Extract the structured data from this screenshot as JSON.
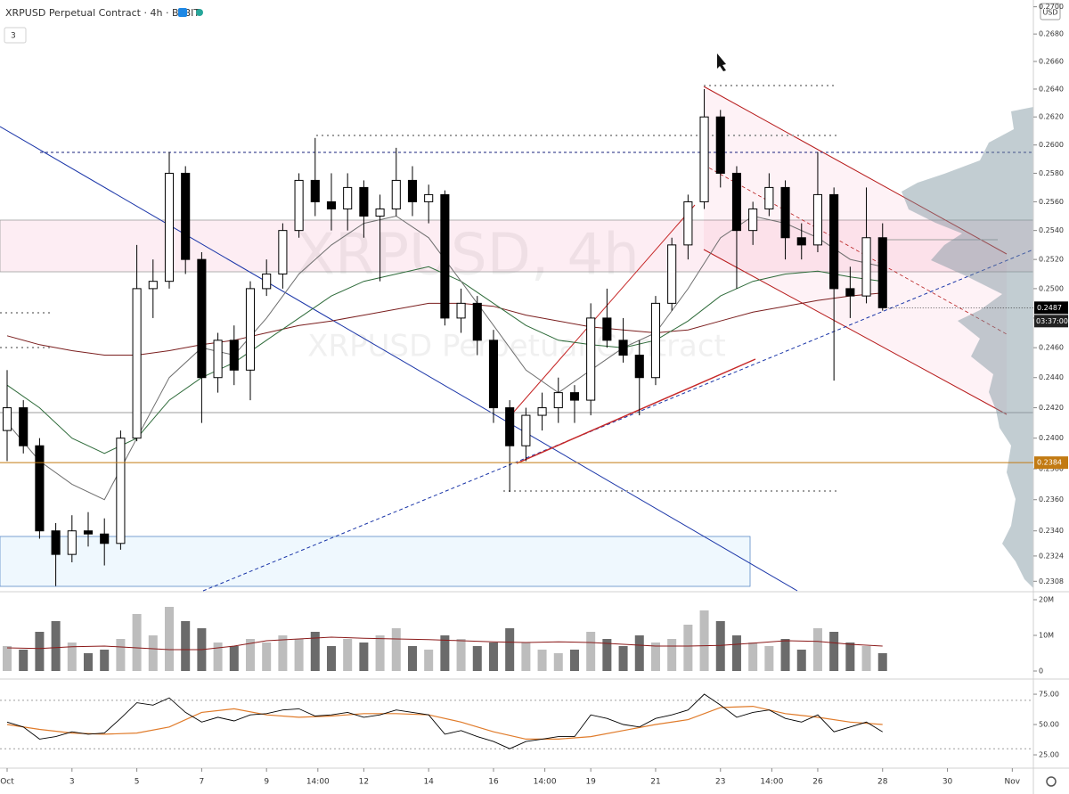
{
  "chart_data": {
    "type": "candlestick",
    "header": "XRPUSD Perpetual Contract · 4h · BYBIT",
    "indicator_count": 3,
    "currency": "USD",
    "watermark": {
      "symbol": "XRPUSD, 4h",
      "description": "XRPUSD Perpetual Contract"
    },
    "up_color": "#ffffff",
    "down_color": "#000000",
    "log_scale": true,
    "grid": false,
    "xlim": [
      -0.22,
      31.65
    ],
    "xticks": [
      {
        "value": 0,
        "label": "Oct"
      },
      {
        "value": 2,
        "label": "3"
      },
      {
        "value": 4,
        "label": "5"
      },
      {
        "value": 6,
        "label": "7"
      },
      {
        "value": 8,
        "label": "9"
      },
      {
        "value": 9.583,
        "label": "14:00"
      },
      {
        "value": 11,
        "label": "12"
      },
      {
        "value": 13,
        "label": "14"
      },
      {
        "value": 15,
        "label": "16"
      },
      {
        "value": 16.583,
        "label": "14:00"
      },
      {
        "value": 18,
        "label": "19"
      },
      {
        "value": 20,
        "label": "21"
      },
      {
        "value": 22,
        "label": "23"
      },
      {
        "value": 23.583,
        "label": "14:00"
      },
      {
        "value": 25,
        "label": "26"
      },
      {
        "value": 27,
        "label": "28"
      },
      {
        "value": 29,
        "label": "30"
      },
      {
        "value": 31,
        "label": "Nov"
      }
    ],
    "ylim": [
      0.2302,
      0.2705
    ],
    "yticks": [
      {
        "value": 0.27,
        "label": "0.2700"
      },
      {
        "value": 0.268,
        "label": "0.2680"
      },
      {
        "value": 0.266,
        "label": "0.2660"
      },
      {
        "value": 0.264,
        "label": "0.2640"
      },
      {
        "value": 0.262,
        "label": "0.2620"
      },
      {
        "value": 0.26,
        "label": "0.2600"
      },
      {
        "value": 0.258,
        "label": "0.2580"
      },
      {
        "value": 0.256,
        "label": "0.2560"
      },
      {
        "value": 0.254,
        "label": "0.2540"
      },
      {
        "value": 0.252,
        "label": "0.2520"
      },
      {
        "value": 0.25,
        "label": "0.2500"
      },
      {
        "value": 0.248,
        "label": "0.2480"
      },
      {
        "value": 0.246,
        "label": "0.2460"
      },
      {
        "value": 0.244,
        "label": "0.2440"
      },
      {
        "value": 0.242,
        "label": "0.2420"
      },
      {
        "value": 0.24,
        "label": "0.2400"
      },
      {
        "value": 0.238,
        "label": "0.2380"
      },
      {
        "value": 0.236,
        "label": "0.2360"
      },
      {
        "value": 0.234,
        "label": "0.2340"
      },
      {
        "value": 0.2324,
        "label": "0.2324"
      },
      {
        "value": 0.2308,
        "label": "0.2308"
      }
    ],
    "x": [
      0,
      0.5,
      1,
      1.5,
      2,
      2.5,
      3,
      3.5,
      4,
      4.5,
      5,
      5.5,
      6,
      6.5,
      7,
      7.5,
      8,
      8.5,
      9,
      9.5,
      10,
      10.5,
      11,
      11.5,
      12,
      12.5,
      13,
      13.5,
      14,
      14.5,
      15,
      15.5,
      16,
      16.5,
      17,
      17.5,
      18,
      18.5,
      19,
      19.5,
      20,
      20.5,
      21,
      21.5,
      22,
      22.5,
      23,
      23.5,
      24,
      24.5,
      25,
      25.5,
      26,
      26.5,
      27
    ],
    "open": [
      0.2405,
      0.242,
      0.2395,
      0.234,
      0.2325,
      0.234,
      0.2338,
      0.2332,
      0.24,
      0.25,
      0.2505,
      0.258,
      0.252,
      0.244,
      0.2465,
      0.2445,
      0.25,
      0.251,
      0.254,
      0.2575,
      0.256,
      0.2555,
      0.257,
      0.255,
      0.2555,
      0.2575,
      0.256,
      0.2565,
      0.248,
      0.249,
      0.2465,
      0.242,
      0.2395,
      0.2415,
      0.242,
      0.243,
      0.2425,
      0.248,
      0.2465,
      0.2455,
      0.244,
      0.249,
      0.253,
      0.256,
      0.262,
      0.258,
      0.254,
      0.2555,
      0.257,
      0.2535,
      0.253,
      0.2565,
      0.25,
      0.2495,
      0.2535
    ],
    "high": [
      0.2445,
      0.2425,
      0.24,
      0.2345,
      0.235,
      0.2352,
      0.2348,
      0.2405,
      0.253,
      0.252,
      0.2595,
      0.2585,
      0.2525,
      0.247,
      0.2475,
      0.2505,
      0.252,
      0.2545,
      0.258,
      0.2605,
      0.258,
      0.258,
      0.2575,
      0.2565,
      0.2598,
      0.2585,
      0.2572,
      0.2568,
      0.25,
      0.2495,
      0.2472,
      0.2425,
      0.242,
      0.243,
      0.244,
      0.2435,
      0.249,
      0.25,
      0.248,
      0.2465,
      0.2495,
      0.2535,
      0.2565,
      0.264,
      0.2625,
      0.2585,
      0.256,
      0.258,
      0.2575,
      0.2545,
      0.2595,
      0.257,
      0.2515,
      0.257,
      0.2545
    ],
    "low": [
      0.2385,
      0.239,
      0.2335,
      0.2305,
      0.232,
      0.233,
      0.2318,
      0.2328,
      0.2398,
      0.248,
      0.25,
      0.251,
      0.241,
      0.243,
      0.2435,
      0.2425,
      0.2495,
      0.25,
      0.2535,
      0.255,
      0.254,
      0.254,
      0.2535,
      0.2505,
      0.255,
      0.255,
      0.2545,
      0.2475,
      0.247,
      0.2455,
      0.241,
      0.2365,
      0.2385,
      0.2405,
      0.241,
      0.241,
      0.2415,
      0.246,
      0.245,
      0.2415,
      0.2435,
      0.2485,
      0.252,
      0.2555,
      0.257,
      0.25,
      0.253,
      0.255,
      0.252,
      0.252,
      0.2525,
      0.2438,
      0.248,
      0.249,
      0.2485
    ],
    "close": [
      0.242,
      0.2395,
      0.234,
      0.2325,
      0.234,
      0.2338,
      0.2332,
      0.24,
      0.25,
      0.2505,
      0.258,
      0.252,
      0.244,
      0.2465,
      0.2445,
      0.25,
      0.251,
      0.254,
      0.2575,
      0.256,
      0.2555,
      0.257,
      0.255,
      0.2555,
      0.2575,
      0.256,
      0.2565,
      0.248,
      0.249,
      0.2465,
      0.242,
      0.2395,
      0.2415,
      0.242,
      0.243,
      0.2425,
      0.248,
      0.2465,
      0.2455,
      0.244,
      0.249,
      0.253,
      0.256,
      0.262,
      0.258,
      0.254,
      0.2555,
      0.257,
      0.2535,
      0.253,
      0.2565,
      0.25,
      0.2495,
      0.2535,
      0.2487
    ],
    "moving_averages": [
      {
        "color": "#7b1f1f",
        "x": [
          0,
          1,
          2,
          3,
          4,
          5,
          6,
          7,
          8,
          9,
          10,
          11,
          12,
          13,
          14,
          15,
          16,
          17,
          18,
          19,
          20,
          21,
          22,
          23,
          24,
          25,
          26,
          27
        ],
        "values": [
          0.2468,
          0.2462,
          0.2458,
          0.2455,
          0.2455,
          0.2458,
          0.2462,
          0.2465,
          0.247,
          0.2475,
          0.2478,
          0.2482,
          0.2486,
          0.249,
          0.249,
          0.2488,
          0.2482,
          0.2478,
          0.2474,
          0.2472,
          0.247,
          0.2472,
          0.2478,
          0.2484,
          0.2488,
          0.2492,
          0.2495,
          0.2497
        ]
      },
      {
        "color": "#2e6b3a",
        "x": [
          0,
          1,
          2,
          3,
          4,
          5,
          6,
          7,
          8,
          9,
          10,
          11,
          12,
          13,
          14,
          15,
          16,
          17,
          18,
          19,
          20,
          21,
          22,
          23,
          24,
          25,
          26,
          27
        ],
        "values": [
          0.2435,
          0.242,
          0.24,
          0.239,
          0.24,
          0.2425,
          0.244,
          0.245,
          0.2465,
          0.248,
          0.2495,
          0.2505,
          0.251,
          0.2515,
          0.2505,
          0.249,
          0.2475,
          0.2465,
          0.2462,
          0.246,
          0.2465,
          0.2478,
          0.2495,
          0.2505,
          0.251,
          0.2512,
          0.2508,
          0.2505
        ]
      },
      {
        "color": "#6e6e6e",
        "x": [
          0,
          1,
          2,
          3,
          4,
          5,
          6,
          7,
          8,
          9,
          10,
          11,
          12,
          13,
          14,
          15,
          16,
          17,
          18,
          19,
          20,
          21,
          22,
          23,
          24,
          25,
          26,
          27
        ],
        "values": [
          0.241,
          0.2385,
          0.237,
          0.236,
          0.24,
          0.244,
          0.246,
          0.2455,
          0.248,
          0.251,
          0.253,
          0.2545,
          0.255,
          0.2535,
          0.2505,
          0.2475,
          0.2445,
          0.243,
          0.2445,
          0.246,
          0.247,
          0.25,
          0.2535,
          0.255,
          0.2545,
          0.2535,
          0.252,
          0.2515
        ]
      }
    ],
    "price_lines": [
      {
        "value": 0.2487,
        "label": "0.2487",
        "time_label": "03:37:00",
        "color": "#000000"
      },
      {
        "value": 0.2384,
        "label": "0.2384",
        "color": "#c27a12"
      }
    ],
    "volume": {
      "ylim": [
        -1750000,
        22000000
      ],
      "yticks": [
        {
          "value": 20000000,
          "label": "20M"
        },
        {
          "value": 10000000,
          "label": "10M"
        },
        0
      ],
      "up_color": "#bdbdbd",
      "down_color": "#6b6b6b",
      "values": [
        7000000,
        6000000,
        11000000,
        14000000,
        8000000,
        5000000,
        6000000,
        9000000,
        16000000,
        10000000,
        18000000,
        14000000,
        12000000,
        8000000,
        7000000,
        9000000,
        8000000,
        10000000,
        9000000,
        11000000,
        7000000,
        9000000,
        8000000,
        10000000,
        12000000,
        7000000,
        6000000,
        10000000,
        9000000,
        7000000,
        8000000,
        12000000,
        8000000,
        6000000,
        5000000,
        6000000,
        11000000,
        9000000,
        7000000,
        10000000,
        8000000,
        9000000,
        13000000,
        17000000,
        14000000,
        10000000,
        8000000,
        7000000,
        9000000,
        6000000,
        12000000,
        11000000,
        8000000,
        7000000,
        5000000
      ],
      "ma": {
        "color": "#8b1a1a",
        "x": [
          0,
          1,
          2,
          3,
          4,
          5,
          6,
          7,
          8,
          9,
          10,
          11,
          12,
          13,
          14,
          15,
          16,
          17,
          18,
          19,
          20,
          21,
          22,
          23,
          24,
          25,
          26,
          27
        ],
        "values": [
          6500000,
          6300000,
          6800000,
          7000000,
          6500000,
          6000000,
          6000000,
          7000000,
          8500000,
          9000000,
          9500000,
          9200000,
          9000000,
          8800000,
          8500000,
          8200000,
          8000000,
          8200000,
          8000000,
          7500000,
          7000000,
          7000000,
          7200000,
          7800000,
          8500000,
          8300000,
          7500000,
          7000000
        ]
      }
    },
    "rsi": {
      "ylim": [
        14,
        86.8
      ],
      "yticks": [
        {
          "value": 75,
          "label": "75.00"
        },
        {
          "value": 50,
          "label": "50.00"
        },
        {
          "value": 25,
          "label": "25.00"
        }
      ],
      "levels": [
        70,
        30
      ],
      "color": "#000000",
      "values": [
        52,
        48,
        38,
        40,
        44,
        42,
        43,
        55,
        68,
        66,
        72,
        60,
        52,
        56,
        53,
        58,
        59,
        62,
        63,
        57,
        58,
        60,
        56,
        58,
        62,
        60,
        58,
        42,
        45,
        40,
        36,
        30,
        36,
        38,
        40,
        40,
        58,
        55,
        50,
        48,
        55,
        58,
        62,
        75,
        66,
        56,
        60,
        62,
        55,
        52,
        58,
        44,
        48,
        52,
        44
      ],
      "ma": {
        "color": "#e07b2a",
        "x": [
          0,
          1,
          2,
          3,
          4,
          5,
          6,
          7,
          8,
          9,
          10,
          11,
          12,
          13,
          14,
          15,
          16,
          17,
          18,
          19,
          20,
          21,
          22,
          23,
          24,
          25,
          26,
          27
        ],
        "values": [
          50,
          46,
          43,
          42,
          43,
          48,
          60,
          63,
          58,
          56,
          57,
          59,
          59,
          58,
          52,
          44,
          38,
          38,
          40,
          45,
          50,
          54,
          64,
          65,
          59,
          56,
          52,
          50
        ]
      }
    }
  }
}
